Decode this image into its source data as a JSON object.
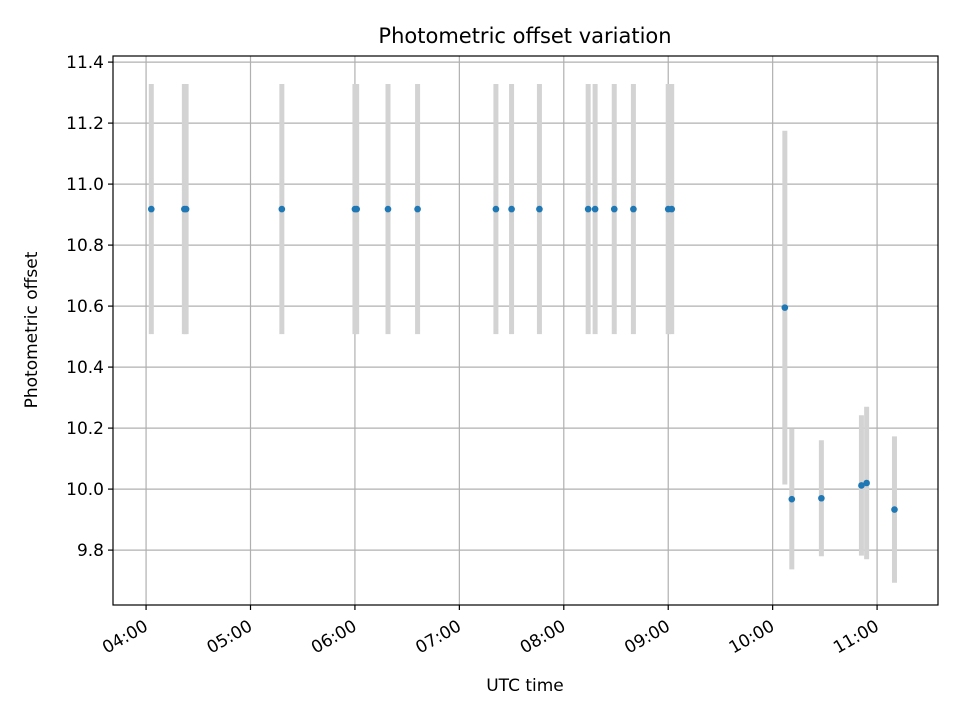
{
  "chart_data": {
    "type": "scatter",
    "title": "Photometric offset variation",
    "xlabel": "UTC time",
    "ylabel": "Photometric offset",
    "grid": true,
    "legend": "none",
    "x_ticks": [
      "04:00",
      "05:00",
      "06:00",
      "07:00",
      "08:00",
      "09:00",
      "10:00",
      "11:00"
    ],
    "y_ticks": [
      "9.8",
      "10.0",
      "10.2",
      "10.4",
      "10.6",
      "10.8",
      "11.0",
      "11.2",
      "11.4"
    ],
    "xlim": [
      "03:41",
      "11:35"
    ],
    "ylim": [
      9.62,
      11.42
    ],
    "point_color": "#1f77b4",
    "errorbar_color": "#d3d3d3",
    "points": [
      {
        "t": "04:03",
        "y": 10.918,
        "err": 0.41
      },
      {
        "t": "04:22",
        "y": 10.918,
        "err": 0.41
      },
      {
        "t": "04:23",
        "y": 10.918,
        "err": 0.41
      },
      {
        "t": "05:18",
        "y": 10.918,
        "err": 0.41
      },
      {
        "t": "06:00",
        "y": 10.918,
        "err": 0.41
      },
      {
        "t": "06:01",
        "y": 10.918,
        "err": 0.41
      },
      {
        "t": "06:19",
        "y": 10.918,
        "err": 0.41
      },
      {
        "t": "06:36",
        "y": 10.918,
        "err": 0.41
      },
      {
        "t": "07:21",
        "y": 10.918,
        "err": 0.41
      },
      {
        "t": "07:30",
        "y": 10.918,
        "err": 0.41
      },
      {
        "t": "07:46",
        "y": 10.918,
        "err": 0.41
      },
      {
        "t": "08:14",
        "y": 10.918,
        "err": 0.41
      },
      {
        "t": "08:18",
        "y": 10.918,
        "err": 0.41
      },
      {
        "t": "08:29",
        "y": 10.918,
        "err": 0.41
      },
      {
        "t": "08:40",
        "y": 10.918,
        "err": 0.41
      },
      {
        "t": "09:00",
        "y": 10.918,
        "err": 0.41
      },
      {
        "t": "09:02",
        "y": 10.918,
        "err": 0.41
      },
      {
        "t": "10:07",
        "y": 10.595,
        "err": 0.58
      },
      {
        "t": "10:11",
        "y": 9.967,
        "err": 0.23
      },
      {
        "t": "10:28",
        "y": 9.97,
        "err": 0.19
      },
      {
        "t": "10:51",
        "y": 10.012,
        "err": 0.23
      },
      {
        "t": "10:54",
        "y": 10.02,
        "err": 0.25
      },
      {
        "t": "11:10",
        "y": 9.933,
        "err": 0.24
      }
    ]
  }
}
